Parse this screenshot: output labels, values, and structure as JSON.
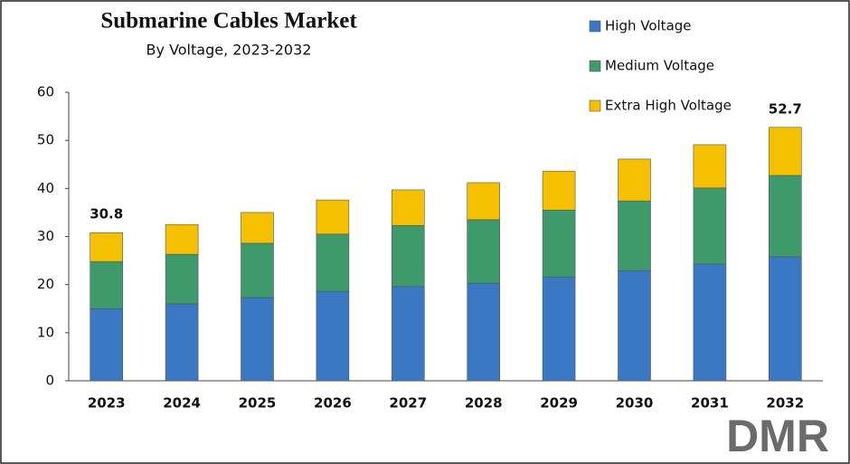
{
  "chart_data": {
    "type": "stacked_bar",
    "title": "Submarine Cables Market",
    "subtitle": "By Voltage, 2023-2032",
    "categories": [
      "2023",
      "2024",
      "2025",
      "2026",
      "2027",
      "2028",
      "2029",
      "2030",
      "2031",
      "2032"
    ],
    "series": [
      {
        "name": "High Voltage",
        "color": "#3a78c4",
        "values": [
          15.0,
          16.0,
          17.3,
          18.6,
          19.6,
          20.3,
          21.6,
          22.9,
          24.3,
          25.8
        ]
      },
      {
        "name": "Medium Voltage",
        "color": "#3e9a6a",
        "values": [
          9.8,
          10.3,
          11.3,
          11.9,
          12.7,
          13.2,
          13.9,
          14.5,
          15.8,
          16.9
        ]
      },
      {
        "name": "Extra High Voltage",
        "color": "#f5c000",
        "values": [
          6.0,
          6.2,
          6.4,
          7.1,
          7.4,
          7.7,
          8.1,
          8.7,
          9.0,
          10.0
        ]
      }
    ],
    "total_labels": [
      {
        "category": "2023",
        "value": 30.8
      },
      {
        "category": "2032",
        "value": 52.7
      }
    ],
    "ylim": [
      0,
      60
    ],
    "yticks": [
      0,
      10,
      20,
      30,
      40,
      50,
      60
    ],
    "legend": "top-right",
    "logo": "DMR"
  }
}
